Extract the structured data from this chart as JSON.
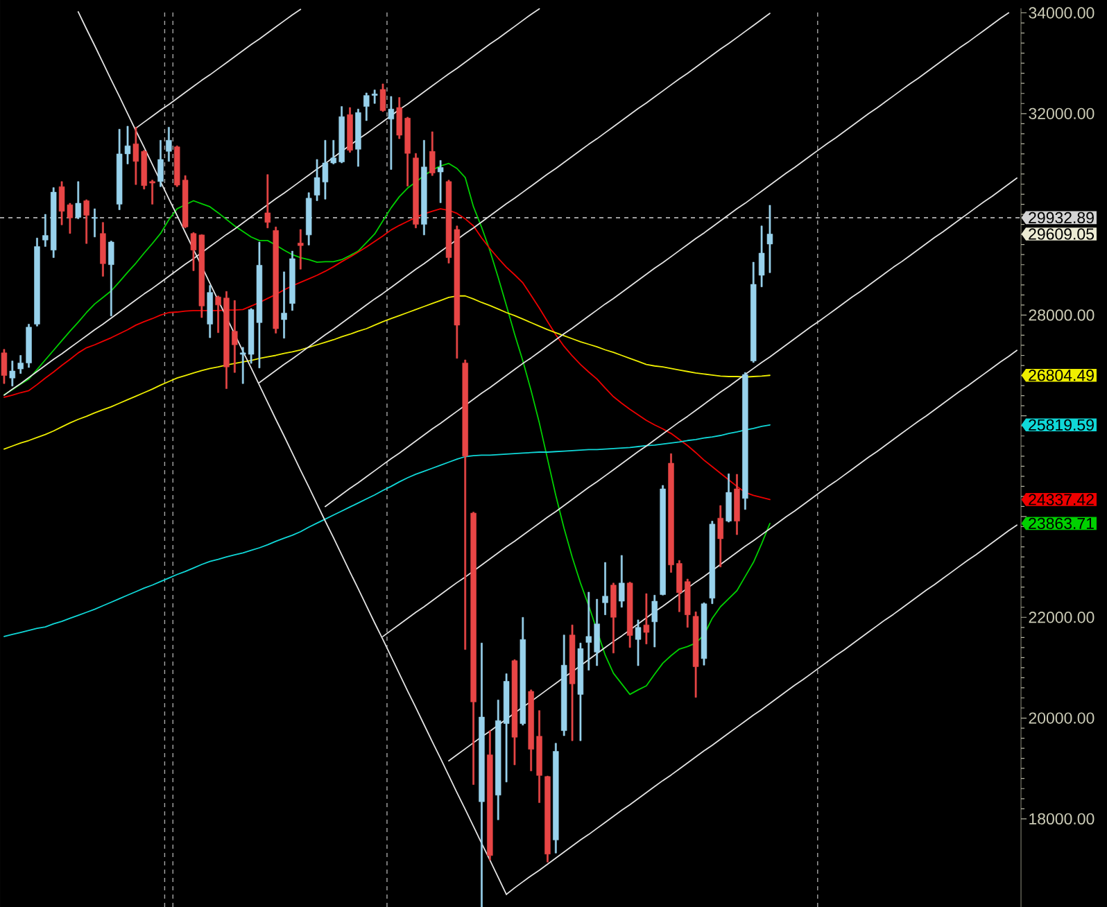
{
  "chart_data": {
    "type": "candlestick",
    "categories": [
      null,
      null,
      null,
      null,
      null,
      null,
      null,
      null,
      null,
      null,
      null,
      null,
      null,
      null,
      null,
      null,
      null,
      null,
      null,
      null,
      null,
      null,
      null,
      null,
      null,
      null,
      null,
      null,
      null,
      null,
      null,
      null,
      null,
      null,
      null,
      null,
      null,
      null,
      null,
      null,
      null,
      null,
      null,
      null,
      null,
      null,
      null,
      null,
      null,
      null,
      null,
      null,
      null,
      null,
      null,
      null,
      null,
      null,
      null,
      null,
      null,
      null,
      null,
      null,
      null,
      null,
      null,
      null,
      null,
      null,
      null,
      null,
      null,
      null,
      null,
      null,
      null,
      null,
      null,
      null,
      null,
      null,
      null,
      null,
      null,
      null,
      null,
      null,
      null,
      null,
      null,
      null,
      null,
      null,
      null,
      null,
      null,
      null,
      null,
      null,
      null,
      null,
      null,
      null,
      null,
      null,
      null,
      null,
      null,
      null,
      null,
      null,
      null,
      null,
      null,
      null,
      null,
      null,
      null,
      null,
      null,
      null,
      null,
      null
    ],
    "ylim": [
      16250,
      34090
    ],
    "yticks": [
      {
        "value": 18000,
        "label": "18000.00"
      },
      {
        "value": 20000,
        "label": "20000.00"
      },
      {
        "value": 22000,
        "label": "22000.00"
      },
      {
        "value": 24000,
        "label": null
      },
      {
        "value": 26000,
        "label": null
      },
      {
        "value": 28000,
        "label": "28000.00"
      },
      {
        "value": 30000,
        "label": null
      },
      {
        "value": 32000,
        "label": "32000.00"
      },
      {
        "value": 34000,
        "label": "34000.00"
      }
    ],
    "tick_labels": "y",
    "ohlc": [
      [
        27250,
        27320,
        26640,
        26800
      ],
      [
        26750,
        27090,
        26590,
        26890
      ],
      [
        26930,
        27200,
        26840,
        27050
      ],
      [
        27050,
        27820,
        26960,
        27760
      ],
      [
        27820,
        29530,
        27780,
        29360
      ],
      [
        29490,
        30000,
        29360,
        29580
      ],
      [
        29290,
        30530,
        29140,
        30440
      ],
      [
        30550,
        30650,
        29790,
        30060
      ],
      [
        30190,
        30220,
        29620,
        29930
      ],
      [
        29940,
        30650,
        29910,
        30220
      ],
      [
        30270,
        30290,
        29420,
        29980
      ],
      [
        29920,
        30110,
        29550,
        29940
      ],
      [
        29620,
        29840,
        28770,
        29020
      ],
      [
        29000,
        29470,
        27980,
        29450
      ],
      [
        30200,
        31690,
        30090,
        31200
      ],
      [
        31200,
        31750,
        31000,
        31360
      ],
      [
        31400,
        31730,
        30590,
        31050
      ],
      [
        31250,
        31270,
        30500,
        30570
      ],
      [
        30650,
        30680,
        30200,
        30620
      ],
      [
        30650,
        31470,
        30550,
        31090
      ],
      [
        31250,
        31730,
        31050,
        31470
      ],
      [
        31340,
        31360,
        30550,
        30580
      ],
      [
        30680,
        30770,
        29730,
        29750
      ],
      [
        29620,
        29640,
        28880,
        29290
      ],
      [
        29590,
        29600,
        27950,
        28180
      ],
      [
        27820,
        28590,
        27550,
        28450
      ],
      [
        28360,
        28380,
        27650,
        28200
      ],
      [
        28340,
        28470,
        26540,
        26970
      ],
      [
        27680,
        28290,
        26860,
        27410
      ],
      [
        27220,
        27360,
        26640,
        27250
      ],
      [
        27220,
        28130,
        27040,
        28110
      ],
      [
        27850,
        29450,
        26950,
        28990
      ],
      [
        30030,
        30790,
        29730,
        29840
      ],
      [
        29680,
        29750,
        27640,
        27730
      ],
      [
        27910,
        28860,
        27540,
        28040
      ],
      [
        28230,
        29270,
        28090,
        29120
      ],
      [
        29430,
        29700,
        28910,
        29380
      ],
      [
        29590,
        30430,
        29390,
        30320
      ],
      [
        30380,
        31090,
        30270,
        30730
      ],
      [
        30640,
        31470,
        30300,
        31020
      ],
      [
        31020,
        31470,
        31000,
        31120
      ],
      [
        31040,
        32140,
        31020,
        31940
      ],
      [
        31980,
        32120,
        31230,
        31270
      ],
      [
        31290,
        32090,
        30950,
        32020
      ],
      [
        32140,
        32410,
        31860,
        32360
      ],
      [
        32360,
        32470,
        32200,
        32390
      ],
      [
        32480,
        32590,
        32040,
        32060
      ],
      [
        31890,
        32340,
        30890,
        32090
      ],
      [
        32120,
        32320,
        31500,
        31570
      ],
      [
        31910,
        31930,
        30560,
        31210
      ],
      [
        31120,
        31210,
        29730,
        29800
      ],
      [
        29800,
        31470,
        29590,
        30940
      ],
      [
        31250,
        31640,
        30770,
        30820
      ],
      [
        30840,
        31070,
        30230,
        30930
      ],
      [
        30650,
        30680,
        29030,
        29140
      ],
      [
        29700,
        29770,
        27140,
        27800
      ],
      [
        27050,
        27110,
        21360,
        25200
      ],
      [
        24070,
        24090,
        18680,
        20320
      ],
      [
        18340,
        21490,
        16250,
        20020
      ],
      [
        19270,
        19750,
        17180,
        17270
      ],
      [
        18470,
        20360,
        17980,
        19950
      ],
      [
        19890,
        20880,
        18730,
        20730
      ],
      [
        21140,
        21160,
        19070,
        19620
      ],
      [
        19890,
        22000,
        19860,
        21560
      ],
      [
        20530,
        20560,
        18950,
        19380
      ],
      [
        19640,
        20150,
        18320,
        18860
      ],
      [
        18840,
        18850,
        17140,
        17300
      ],
      [
        17580,
        19500,
        17320,
        19340
      ],
      [
        19750,
        21650,
        19650,
        21050
      ],
      [
        21650,
        21850,
        19550,
        20680
      ],
      [
        20470,
        21490,
        19550,
        21380
      ],
      [
        21500,
        22500,
        20950,
        21620
      ],
      [
        21310,
        22360,
        21040,
        21870
      ],
      [
        22290,
        23090,
        22050,
        22420
      ],
      [
        22640,
        22680,
        21290,
        22000
      ],
      [
        22320,
        23230,
        22200,
        22680
      ],
      [
        22680,
        22700,
        21400,
        21640
      ],
      [
        21560,
        21950,
        21040,
        21800
      ],
      [
        21850,
        22470,
        21470,
        21700
      ],
      [
        21910,
        22440,
        21410,
        22320
      ],
      [
        22450,
        24620,
        22440,
        24550
      ],
      [
        25060,
        25250,
        22890,
        23040
      ],
      [
        23070,
        23130,
        22110,
        22490
      ],
      [
        22710,
        22760,
        21800,
        22050
      ],
      [
        22020,
        22110,
        20410,
        21020
      ],
      [
        21180,
        22290,
        21050,
        22270
      ],
      [
        22380,
        23910,
        22270,
        23850
      ],
      [
        23970,
        24220,
        23000,
        23560
      ],
      [
        23910,
        24850,
        23890,
        24480
      ],
      [
        24550,
        24840,
        23640,
        23910
      ],
      [
        24360,
        26860,
        24140,
        26820
      ],
      [
        27090,
        29050,
        27060,
        28610
      ],
      [
        28790,
        29770,
        28560,
        29230
      ],
      [
        29410,
        30180,
        28840,
        29609.05
      ],
      null,
      null,
      null,
      null,
      null,
      null,
      null,
      null,
      null,
      null,
      null,
      null,
      null,
      null,
      null,
      null,
      null,
      null,
      null,
      null,
      null,
      null,
      null,
      null,
      null,
      null,
      null,
      null,
      null,
      null
    ],
    "colors": [
      "#e84646",
      "#98d2ec",
      "#98d2ec",
      "#98d2ec",
      "#98d2ec",
      "#98d2ec",
      "#98d2ec",
      "#e84646",
      "#e84646",
      "#98d2ec",
      "#e84646",
      "#98d2ec",
      "#e84646",
      "#98d2ec",
      "#98d2ec",
      "#98d2ec",
      "#e84646",
      "#e84646",
      "#e84646",
      "#98d2ec",
      "#98d2ec",
      "#e84646",
      "#e84646",
      "#e84646",
      "#e84646",
      "#98d2ec",
      "#e84646",
      "#e84646",
      "#e84646",
      "#98d2ec",
      "#98d2ec",
      "#98d2ec",
      "#e84646",
      "#e84646",
      "#98d2ec",
      "#98d2ec",
      "#e84646",
      "#98d2ec",
      "#98d2ec",
      "#98d2ec",
      "#98d2ec",
      "#98d2ec",
      "#e84646",
      "#98d2ec",
      "#98d2ec",
      "#98d2ec",
      "#e84646",
      "#98d2ec",
      "#e84646",
      "#e84646",
      "#e84646",
      "#98d2ec",
      "#e84646",
      "#98d2ec",
      "#e84646",
      "#e84646",
      "#e84646",
      "#e84646",
      "#98d2ec",
      "#e84646",
      "#98d2ec",
      "#98d2ec",
      "#e84646",
      "#98d2ec",
      "#e84646",
      "#e84646",
      "#e84646",
      "#98d2ec",
      "#98d2ec",
      "#e84646",
      "#98d2ec",
      "#98d2ec",
      "#98d2ec",
      "#98d2ec",
      "#e84646",
      "#98d2ec",
      "#e84646",
      "#98d2ec",
      "#e84646",
      "#98d2ec",
      "#98d2ec",
      "#e84646",
      "#e84646",
      "#e84646",
      "#e84646",
      "#98d2ec",
      "#98d2ec",
      "#e84646",
      "#98d2ec",
      "#e84646",
      "#98d2ec",
      "#98d2ec",
      "#98d2ec",
      "#98d2ec",
      null,
      null,
      null,
      null,
      null,
      null,
      null,
      null,
      null,
      null,
      null,
      null,
      null,
      null,
      null,
      null,
      null,
      null,
      null,
      null,
      null,
      null,
      null,
      null,
      null,
      null,
      null,
      null,
      null,
      null
    ],
    "series": [
      {
        "type": "line",
        "color": "#00d000",
        "values": [
          26420,
          26520,
          26630,
          26730,
          26920,
          27110,
          27300,
          27490,
          27680,
          27860,
          28050,
          28220,
          28350,
          28480,
          28660,
          28850,
          29030,
          29230,
          29420,
          29620,
          29890,
          30110,
          30190,
          30270,
          30210,
          30150,
          30030,
          29900,
          29770,
          29660,
          29550,
          29480,
          29480,
          29390,
          29290,
          29200,
          29140,
          29100,
          29050,
          29060,
          29060,
          29100,
          29180,
          29270,
          29440,
          29610,
          29870,
          30130,
          30350,
          30520,
          30640,
          30770,
          30880,
          30960,
          31010,
          30910,
          30730,
          30150,
          29740,
          29280,
          28750,
          28190,
          27620,
          27090,
          26500,
          25860,
          25140,
          24420,
          23770,
          23190,
          22680,
          22230,
          21740,
          21250,
          20890,
          20680,
          20470,
          20560,
          20640,
          20870,
          21090,
          21240,
          21370,
          21420,
          21490,
          21650,
          21980,
          22210,
          22370,
          22530,
          22810,
          23090,
          23460,
          23863.71,
          null,
          null,
          null,
          null,
          null,
          null,
          null,
          null,
          null,
          null,
          null,
          null,
          null,
          null,
          null,
          null,
          null,
          null,
          null,
          null,
          null,
          null,
          null,
          null,
          null,
          null,
          null,
          null,
          null,
          null
        ]
      },
      {
        "type": "line",
        "color": "#ee0000",
        "values": [
          26370,
          26410,
          26460,
          26500,
          26620,
          26750,
          26870,
          27000,
          27120,
          27250,
          27350,
          27410,
          27480,
          27550,
          27630,
          27710,
          27800,
          27870,
          27930,
          28000,
          28050,
          28060,
          28080,
          28090,
          28090,
          28090,
          28090,
          28100,
          28100,
          28110,
          28180,
          28250,
          28330,
          28410,
          28500,
          28580,
          28650,
          28720,
          28790,
          28870,
          28960,
          29060,
          29150,
          29250,
          29350,
          29460,
          29570,
          29690,
          29780,
          29860,
          29940,
          30010,
          30060,
          30110,
          30080,
          30020,
          29910,
          29770,
          29530,
          29320,
          29130,
          28950,
          28800,
          28640,
          28390,
          28140,
          27870,
          27610,
          27380,
          27190,
          27020,
          26870,
          26730,
          26550,
          26380,
          26250,
          26130,
          26020,
          25910,
          25820,
          25740,
          25650,
          25530,
          25410,
          25270,
          25120,
          24990,
          24860,
          24730,
          24600,
          24480,
          24420,
          24380,
          24337.42,
          null,
          null,
          null,
          null,
          null,
          null,
          null,
          null,
          null,
          null,
          null,
          null,
          null,
          null,
          null,
          null,
          null,
          null,
          null,
          null,
          null,
          null,
          null,
          null,
          null,
          null,
          null,
          null,
          null,
          null
        ]
      },
      {
        "type": "line",
        "color": "#eeee00",
        "values": [
          25340,
          25400,
          25460,
          25510,
          25570,
          25630,
          25700,
          25780,
          25860,
          25930,
          25990,
          26060,
          26120,
          26180,
          26250,
          26320,
          26390,
          26460,
          26530,
          26610,
          26680,
          26750,
          26800,
          26850,
          26900,
          26940,
          26970,
          27010,
          27040,
          27070,
          27100,
          27140,
          27170,
          27200,
          27240,
          27270,
          27310,
          27360,
          27410,
          27460,
          27510,
          27570,
          27620,
          27680,
          27730,
          27800,
          27870,
          27930,
          27990,
          28050,
          28110,
          28170,
          28230,
          28290,
          28350,
          28380,
          28380,
          28320,
          28250,
          28190,
          28120,
          28050,
          27990,
          27920,
          27850,
          27780,
          27710,
          27650,
          27590,
          27530,
          27470,
          27420,
          27370,
          27310,
          27260,
          27200,
          27140,
          27080,
          27020,
          26990,
          26970,
          26940,
          26910,
          26880,
          26850,
          26830,
          26810,
          26790,
          26780,
          26780,
          26770,
          26780,
          26790,
          26804.49,
          null,
          null,
          null,
          null,
          null,
          null,
          null,
          null,
          null,
          null,
          null,
          null,
          null,
          null,
          null,
          null,
          null,
          null,
          null,
          null,
          null,
          null,
          null,
          null,
          null,
          null,
          null,
          null,
          null,
          null
        ]
      },
      {
        "type": "line",
        "color": "#10d8d8",
        "values": [
          21620,
          21660,
          21700,
          21740,
          21780,
          21810,
          21870,
          21920,
          21980,
          22040,
          22100,
          22160,
          22230,
          22300,
          22370,
          22440,
          22510,
          22580,
          22640,
          22710,
          22780,
          22850,
          22910,
          22980,
          23050,
          23110,
          23150,
          23200,
          23240,
          23280,
          23330,
          23380,
          23440,
          23510,
          23570,
          23630,
          23700,
          23790,
          23870,
          23950,
          24030,
          24110,
          24190,
          24270,
          24350,
          24430,
          24520,
          24600,
          24690,
          24770,
          24840,
          24900,
          24960,
          25020,
          25080,
          25140,
          25190,
          25210,
          25220,
          25220,
          25230,
          25240,
          25250,
          25260,
          25270,
          25280,
          25280,
          25290,
          25300,
          25310,
          25320,
          25330,
          25330,
          25340,
          25350,
          25360,
          25370,
          25390,
          25410,
          25420,
          25440,
          25460,
          25480,
          25510,
          25530,
          25560,
          25580,
          25610,
          25650,
          25680,
          25720,
          25750,
          25790,
          25819.59,
          null,
          null,
          null,
          null,
          null,
          null,
          null,
          null,
          null,
          null,
          null,
          null,
          null,
          null,
          null,
          null,
          null,
          null,
          null,
          null,
          null,
          null,
          null,
          null,
          null,
          null,
          null,
          null,
          null,
          null
        ]
      },
      {
        "type": "line",
        "color": "#e4e4e4",
        "values": [
          null,
          null,
          null,
          null,
          null,
          null,
          null,
          null,
          null,
          34020,
          33680,
          33350,
          33010,
          32670,
          32340,
          32000,
          31660,
          31330,
          30990,
          30650,
          30310,
          29980,
          29640,
          29300,
          28970,
          28630,
          28290,
          27960,
          27620,
          27280,
          26950,
          26610,
          26270,
          25930,
          25600,
          25260,
          24920,
          24590,
          24250,
          23910,
          23580,
          23240,
          22900,
          22570,
          22230,
          21890,
          21560,
          21220,
          20880,
          20540,
          20210,
          19870,
          19530,
          19200,
          18860,
          18520,
          18190,
          17850,
          17510,
          17180,
          16840,
          16500,
          null,
          null,
          null,
          null,
          null,
          null,
          null,
          null,
          null,
          null,
          null,
          null,
          null,
          null,
          null,
          null,
          null,
          null,
          null,
          null,
          null,
          null,
          null,
          null,
          null,
          null,
          null,
          null,
          null,
          null,
          null,
          null,
          null,
          null,
          null,
          null,
          null,
          null,
          null,
          null,
          null,
          null,
          null,
          null,
          null,
          null,
          null,
          null,
          null,
          null,
          null,
          null,
          null,
          null,
          null,
          null,
          null,
          null,
          null,
          null,
          null,
          null
        ]
      },
      {
        "type": "line",
        "color": "#e4e4e4",
        "values": [
          null,
          null,
          null,
          null,
          null,
          null,
          null,
          null,
          null,
          null,
          null,
          null,
          null,
          null,
          null,
          null,
          31710,
          31830,
          31950,
          32070,
          32180,
          32300,
          32420,
          32540,
          32660,
          32770,
          32890,
          33010,
          33130,
          33250,
          33370,
          33480,
          33600,
          33720,
          33840,
          33960,
          34070,
          null,
          null,
          null,
          null,
          null,
          null,
          null,
          null,
          null,
          null,
          null,
          null,
          null,
          null,
          null,
          null,
          null,
          null,
          null,
          null,
          null,
          null,
          null,
          null,
          null,
          null,
          null,
          null,
          null,
          null,
          null,
          null,
          null,
          null,
          null,
          null,
          null,
          null,
          null,
          null,
          null,
          null,
          null,
          null,
          null,
          null,
          null,
          null,
          null,
          null,
          null,
          null,
          null,
          null,
          null,
          null,
          null,
          null,
          null,
          null,
          null,
          null,
          null,
          null,
          null,
          null,
          null,
          null,
          null,
          null,
          null,
          null,
          null,
          null,
          null,
          null,
          null,
          null,
          null,
          null,
          null,
          null,
          null,
          null,
          null,
          null,
          null
        ]
      },
      {
        "type": "line",
        "color": "#e4e4e4",
        "values": [
          26410,
          26530,
          26640,
          26760,
          26880,
          27000,
          27120,
          27230,
          27350,
          27470,
          27590,
          27710,
          27820,
          27940,
          28060,
          28180,
          28300,
          28420,
          28530,
          28650,
          28770,
          28890,
          29010,
          29120,
          29240,
          29360,
          29480,
          29600,
          29710,
          29830,
          29950,
          30070,
          30190,
          30310,
          30420,
          30540,
          30660,
          30780,
          30900,
          31010,
          31130,
          31250,
          31370,
          31490,
          31600,
          31720,
          31840,
          31960,
          32080,
          32190,
          32310,
          32430,
          32550,
          32670,
          32790,
          32900,
          33020,
          33140,
          33260,
          33380,
          33490,
          33610,
          33730,
          33850,
          33970,
          34080,
          null,
          null,
          null,
          null,
          null,
          null,
          null,
          null,
          null,
          null,
          null,
          null,
          null,
          null,
          null,
          null,
          null,
          null,
          null,
          null,
          null,
          null,
          null,
          null,
          null,
          null,
          null,
          null,
          null,
          null,
          null,
          null,
          null,
          null,
          null,
          null,
          null,
          null,
          null,
          null,
          null,
          null,
          null,
          null,
          null,
          null,
          null,
          null,
          null,
          null,
          null,
          null,
          null,
          null,
          null,
          null,
          null,
          null
        ]
      },
      {
        "type": "line",
        "color": "#e4e4e4",
        "values": [
          null,
          null,
          null,
          null,
          null,
          null,
          null,
          null,
          null,
          null,
          null,
          null,
          null,
          null,
          null,
          null,
          null,
          null,
          null,
          null,
          null,
          null,
          null,
          null,
          null,
          null,
          null,
          null,
          null,
          null,
          null,
          26660,
          26780,
          26900,
          27020,
          27130,
          27250,
          27370,
          27490,
          27610,
          27720,
          27840,
          27960,
          28080,
          28200,
          28320,
          28430,
          28550,
          28670,
          28790,
          28910,
          29020,
          29140,
          29260,
          29380,
          29500,
          29620,
          29730,
          29850,
          29970,
          30090,
          30210,
          30320,
          30440,
          30560,
          30680,
          30800,
          30910,
          31030,
          31150,
          31270,
          31390,
          31500,
          31620,
          31740,
          31860,
          31980,
          32100,
          32210,
          32330,
          32450,
          32570,
          32690,
          32800,
          32920,
          33040,
          33160,
          33280,
          33390,
          33510,
          33630,
          33750,
          33870,
          33990,
          null,
          null,
          null,
          null,
          null,
          null,
          null,
          null,
          null,
          null,
          null,
          null,
          null,
          null,
          null,
          null,
          null,
          null,
          null,
          null,
          null,
          null,
          null,
          null,
          null,
          null,
          null,
          null,
          null,
          null
        ]
      },
      {
        "type": "line",
        "color": "#e4e4e4",
        "values": [
          null,
          null,
          null,
          null,
          null,
          null,
          null,
          null,
          null,
          null,
          null,
          null,
          null,
          null,
          null,
          null,
          null,
          null,
          null,
          null,
          null,
          null,
          null,
          null,
          null,
          null,
          null,
          null,
          null,
          null,
          null,
          null,
          null,
          null,
          null,
          null,
          null,
          null,
          null,
          24200,
          24320,
          24440,
          24560,
          24670,
          24790,
          24910,
          25030,
          25150,
          25260,
          25380,
          25500,
          25620,
          25740,
          25850,
          25970,
          26090,
          26210,
          26330,
          26450,
          26560,
          26680,
          26800,
          26920,
          27040,
          27150,
          27270,
          27390,
          27510,
          27630,
          27740,
          27860,
          27980,
          28100,
          28220,
          28330,
          28450,
          28570,
          28690,
          28810,
          28930,
          29040,
          29160,
          29280,
          29400,
          29520,
          29630,
          29750,
          29870,
          29990,
          30110,
          30220,
          30340,
          30460,
          30580,
          30700,
          30820,
          30930,
          31050,
          31170,
          31290,
          31410,
          31520,
          31640,
          31760,
          31880,
          32000,
          32110,
          32230,
          32350,
          32470,
          32590,
          32700,
          32820,
          32940,
          33060,
          33180,
          33300,
          33410,
          33530,
          33650,
          33770,
          33890,
          34000,
          null
        ]
      },
      {
        "type": "line",
        "color": "#e4e4e4",
        "values": [
          null,
          null,
          null,
          null,
          null,
          null,
          null,
          null,
          null,
          null,
          null,
          null,
          null,
          null,
          null,
          null,
          null,
          null,
          null,
          null,
          null,
          null,
          null,
          null,
          null,
          null,
          null,
          null,
          null,
          null,
          null,
          null,
          null,
          null,
          null,
          null,
          null,
          null,
          null,
          null,
          null,
          null,
          null,
          null,
          null,
          null,
          21620,
          21740,
          21860,
          21980,
          22100,
          22210,
          22330,
          22450,
          22570,
          22690,
          22800,
          22920,
          23040,
          23160,
          23280,
          23400,
          23510,
          23630,
          23750,
          23870,
          23990,
          24100,
          24220,
          24340,
          24460,
          24580,
          24690,
          24810,
          24930,
          25050,
          25170,
          25290,
          25400,
          25520,
          25640,
          25760,
          25880,
          25990,
          26110,
          26230,
          26350,
          26470,
          26580,
          26700,
          26820,
          26940,
          27060,
          27170,
          27290,
          27410,
          27530,
          27650,
          27770,
          27880,
          28000,
          28120,
          28240,
          28360,
          28470,
          28590,
          28710,
          28830,
          28950,
          29060,
          29180,
          29300,
          29420,
          29540,
          29650,
          29770,
          29890,
          30010,
          30130,
          30250,
          30360,
          30480,
          30600,
          30720
        ]
      },
      {
        "type": "line",
        "color": "#e4e4e4",
        "values": [
          null,
          null,
          null,
          null,
          null,
          null,
          null,
          null,
          null,
          null,
          null,
          null,
          null,
          null,
          null,
          null,
          null,
          null,
          null,
          null,
          null,
          null,
          null,
          null,
          null,
          null,
          null,
          null,
          null,
          null,
          null,
          null,
          null,
          null,
          null,
          null,
          null,
          null,
          null,
          null,
          null,
          null,
          null,
          null,
          null,
          null,
          null,
          null,
          null,
          null,
          null,
          null,
          null,
          null,
          19150,
          19270,
          19390,
          19510,
          19630,
          19740,
          19860,
          19980,
          20100,
          20220,
          20330,
          20450,
          20570,
          20690,
          20810,
          20920,
          21040,
          21160,
          21280,
          21400,
          21520,
          21630,
          21750,
          21870,
          21990,
          22110,
          22220,
          22340,
          22460,
          22580,
          22700,
          22810,
          22930,
          23050,
          23170,
          23290,
          23410,
          23520,
          23640,
          23760,
          23880,
          24000,
          24110,
          24230,
          24350,
          24470,
          24590,
          24700,
          24820,
          24940,
          25060,
          25180,
          25290,
          25410,
          25530,
          25650,
          25770,
          25890,
          26000,
          26120,
          26240,
          26360,
          26480,
          26590,
          26710,
          26830,
          26950,
          27070,
          27180,
          27300
        ]
      },
      {
        "type": "line",
        "color": "#e4e4e4",
        "values": [
          null,
          null,
          null,
          null,
          null,
          null,
          null,
          null,
          null,
          null,
          null,
          null,
          null,
          null,
          null,
          null,
          null,
          null,
          null,
          null,
          null,
          null,
          null,
          null,
          null,
          null,
          null,
          null,
          null,
          null,
          null,
          null,
          null,
          null,
          null,
          null,
          null,
          null,
          null,
          null,
          null,
          null,
          null,
          null,
          null,
          null,
          null,
          null,
          null,
          null,
          null,
          null,
          null,
          null,
          null,
          null,
          null,
          null,
          null,
          null,
          null,
          16500,
          16630,
          16750,
          16870,
          16980,
          17100,
          17220,
          17340,
          17460,
          17580,
          17690,
          17810,
          17930,
          18050,
          18170,
          18280,
          18400,
          18520,
          18640,
          18760,
          18870,
          18990,
          19110,
          19230,
          19350,
          19460,
          19580,
          19700,
          19820,
          19940,
          20060,
          20170,
          20290,
          20410,
          20530,
          20650,
          20760,
          20880,
          21000,
          21120,
          21240,
          21350,
          21470,
          21590,
          21710,
          21830,
          21950,
          22060,
          22180,
          22300,
          22420,
          22540,
          22650,
          22770,
          22890,
          23010,
          23130,
          23240,
          23360,
          23480,
          23600,
          23720,
          23830
        ]
      }
    ],
    "ref_lines": [
      {
        "axis": "y",
        "value": 29932.89,
        "label": "29932.89",
        "color": "#d4d4d4",
        "line_style": "dashed"
      }
    ],
    "annotations": [
      "29609.05",
      "23863.71",
      "24337.42",
      "26804.49",
      "25819.59"
    ]
  }
}
